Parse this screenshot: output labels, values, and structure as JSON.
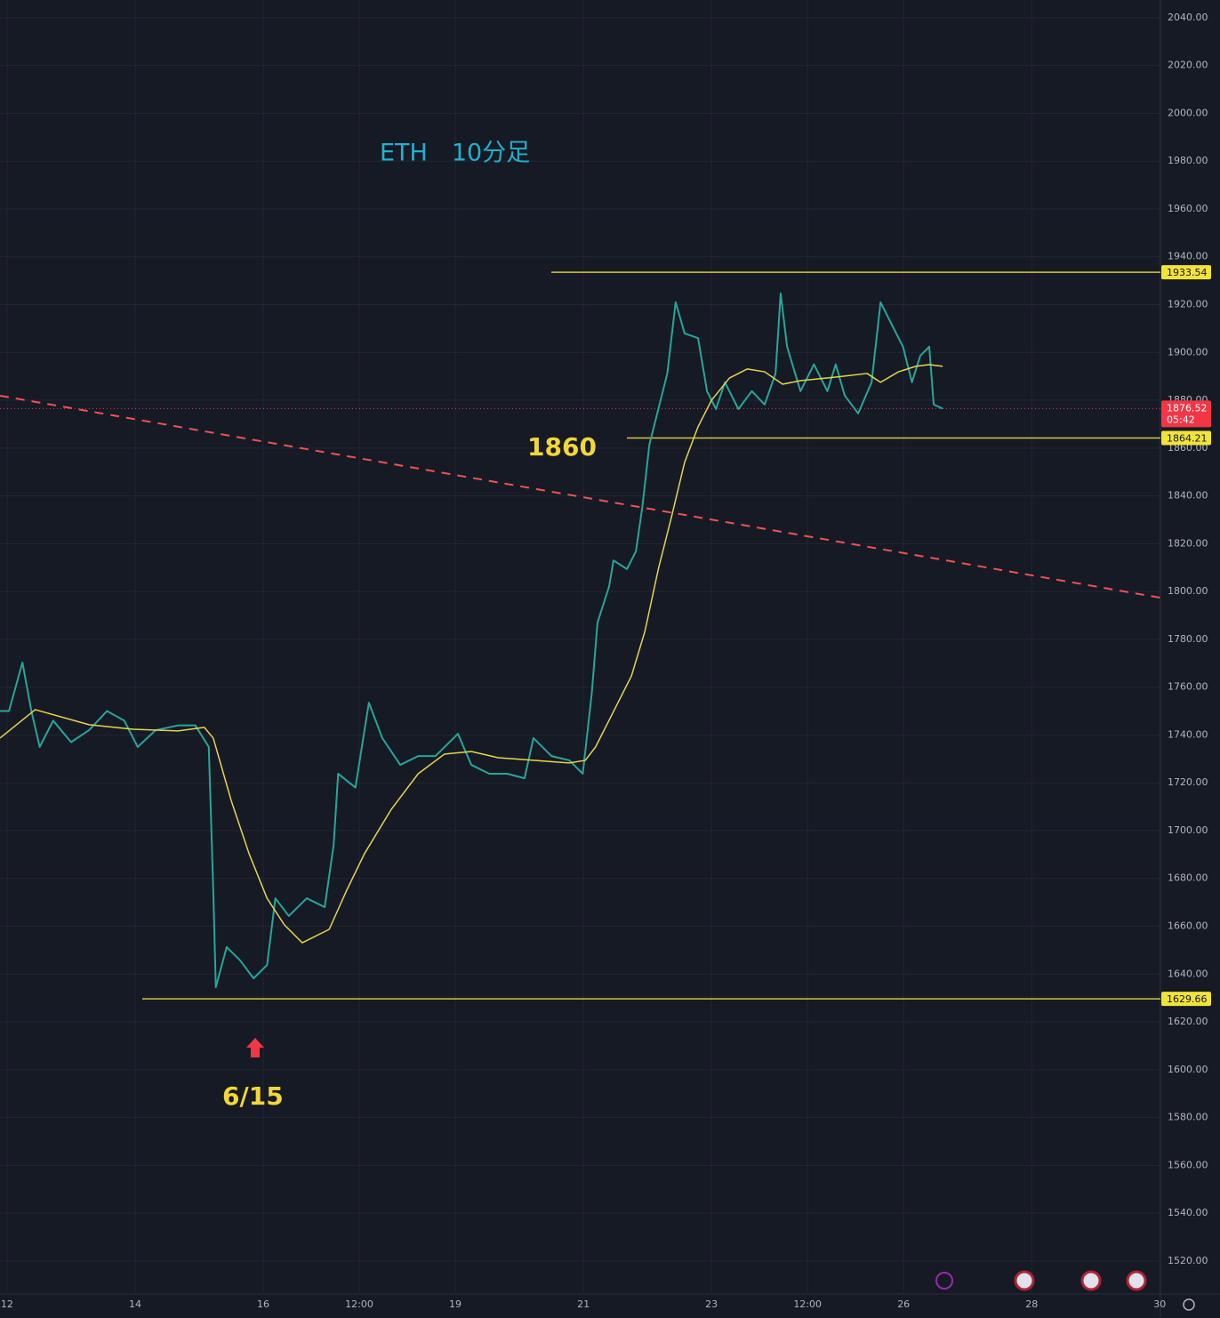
{
  "chart_data": {
    "type": "line",
    "title": "ETH　10分足",
    "xlim": [
      11.89,
      30.01
    ],
    "ylim": [
      1506.2,
      2047.4
    ],
    "xticks": [
      12,
      14,
      16,
      {
        "value": 17.5,
        "label": "12:00"
      },
      19,
      21,
      23,
      {
        "value": 24.5,
        "label": "12:00"
      },
      26,
      28,
      30
    ],
    "yticks": [
      {
        "value": 1520,
        "label": "1520.00"
      },
      {
        "value": 1540,
        "label": "1540.00"
      },
      {
        "value": 1560,
        "label": "1560.00"
      },
      {
        "value": 1580,
        "label": "1580.00"
      },
      {
        "value": 1600,
        "label": "1600.00"
      },
      {
        "value": 1620,
        "label": "1620.00"
      },
      {
        "value": 1640,
        "label": "1640.00"
      },
      {
        "value": 1660,
        "label": "1660.00"
      },
      {
        "value": 1680,
        "label": "1680.00"
      },
      {
        "value": 1700,
        "label": "1700.00"
      },
      {
        "value": 1720,
        "label": "1720.00"
      },
      {
        "value": 1740,
        "label": "1740.00"
      },
      {
        "value": 1760,
        "label": "1760.00"
      },
      {
        "value": 1780,
        "label": "1780.00"
      },
      {
        "value": 1800,
        "label": "1800.00"
      },
      {
        "value": 1820,
        "label": "1820.00"
      },
      {
        "value": 1840,
        "label": "1840.00"
      },
      {
        "value": 1860,
        "label": "1860.00"
      },
      {
        "value": 1880,
        "label": "1880.00"
      },
      {
        "value": 1900,
        "label": "1900.00"
      },
      {
        "value": 1920,
        "label": "1920.00"
      },
      {
        "value": 1940,
        "label": "1940.00"
      },
      {
        "value": 1960,
        "label": "1960.00"
      },
      {
        "value": 1980,
        "label": "1980.00"
      },
      {
        "value": 2000,
        "label": "2000.00"
      },
      {
        "value": 2020,
        "label": "2020.00"
      },
      {
        "value": 2040,
        "label": "2040.00"
      }
    ],
    "grid": true,
    "series": [
      {
        "color": "#26a69a",
        "x": [
          11.89,
          12.03,
          12.24,
          12.38,
          12.51,
          12.72,
          13.0,
          13.28,
          13.56,
          13.83,
          14.04,
          14.32,
          14.67,
          14.94,
          15.15,
          15.22,
          15.26,
          15.43,
          15.64,
          15.85,
          16.06,
          16.19,
          16.4,
          16.68,
          16.96,
          17.1,
          17.17,
          17.44,
          17.65,
          17.86,
          18.14,
          18.42,
          18.69,
          19.04,
          19.25,
          19.53,
          19.81,
          20.08,
          20.22,
          20.5,
          20.78,
          20.99,
          21.13,
          21.22,
          21.4,
          21.47,
          21.68,
          21.82,
          21.92,
          22.03,
          22.17,
          22.31,
          22.44,
          22.58,
          22.79,
          22.93,
          23.07,
          23.21,
          23.42,
          23.63,
          23.83,
          24.0,
          24.08,
          24.18,
          24.39,
          24.6,
          24.81,
          24.94,
          25.08,
          25.29,
          25.5,
          25.64,
          25.78,
          25.99,
          26.13,
          26.26,
          26.4,
          26.47,
          26.61
        ],
        "values": [
          1750,
          1750,
          1770.3,
          1750,
          1735,
          1746,
          1737,
          1742,
          1750,
          1746,
          1735,
          1742,
          1744,
          1744,
          1735,
          1675.4,
          1634.5,
          1651.3,
          1645.7,
          1638.2,
          1643.8,
          1671.7,
          1664.3,
          1671.7,
          1668,
          1694,
          1723.8,
          1718,
          1753.5,
          1738.7,
          1727.5,
          1731.2,
          1731.2,
          1740.5,
          1727.5,
          1723.8,
          1723.8,
          1721.9,
          1738.7,
          1731.2,
          1729.4,
          1723.8,
          1757.3,
          1787,
          1802,
          1813,
          1809.4,
          1816.8,
          1835.4,
          1861.4,
          1876.3,
          1891.2,
          1921,
          1908,
          1906,
          1883.8,
          1876.3,
          1887.5,
          1876.3,
          1883.8,
          1878.2,
          1891.2,
          1924.7,
          1902.4,
          1883.8,
          1895,
          1883.8,
          1895,
          1882,
          1874.5,
          1887.5,
          1921,
          1913.5,
          1902.4,
          1887.5,
          1898.6,
          1902.4,
          1878.2,
          1876.52
        ]
      },
      {
        "color": "#e8d54a",
        "x": [
          11.89,
          12.44,
          13.28,
          13.97,
          14.67,
          15.08,
          15.22,
          15.5,
          15.78,
          16.06,
          16.33,
          16.61,
          17.03,
          17.31,
          17.58,
          18.0,
          18.42,
          18.83,
          19.25,
          19.67,
          20.22,
          20.78,
          21.03,
          21.19,
          21.47,
          21.75,
          21.96,
          22.17,
          22.38,
          22.58,
          22.79,
          23.0,
          23.28,
          23.56,
          23.83,
          24.11,
          24.39,
          24.94,
          25.43,
          25.64,
          25.92,
          26.19,
          26.4,
          26.61
        ],
        "values": [
          1738.7,
          1750.6,
          1744.3,
          1742.4,
          1741.7,
          1743.2,
          1738.7,
          1712.6,
          1690.3,
          1671.7,
          1660.6,
          1653.1,
          1658.7,
          1675.4,
          1690.3,
          1708.9,
          1723.8,
          1732,
          1733.1,
          1730.5,
          1729.4,
          1728.3,
          1729.4,
          1735,
          1749.8,
          1764.7,
          1783.3,
          1809.4,
          1831.7,
          1854,
          1868.9,
          1880,
          1889.3,
          1893.1,
          1891.9,
          1886.7,
          1888.2,
          1889.7,
          1891.2,
          1887.5,
          1891.9,
          1894.2,
          1894.9,
          1894.2
        ]
      }
    ],
    "levels": [
      1933.54,
      1864.21,
      1629.66
    ],
    "level_color": "#d4c73a",
    "current_price": 1876.52,
    "countdown": "05:42",
    "current_color": "#f23645",
    "trendline": {
      "x": [
        11.89,
        30.01
      ],
      "values": [
        1881.9,
        1797.4
      ],
      "color": "#f05350"
    },
    "annotations": [
      "1860",
      "6/15"
    ]
  }
}
